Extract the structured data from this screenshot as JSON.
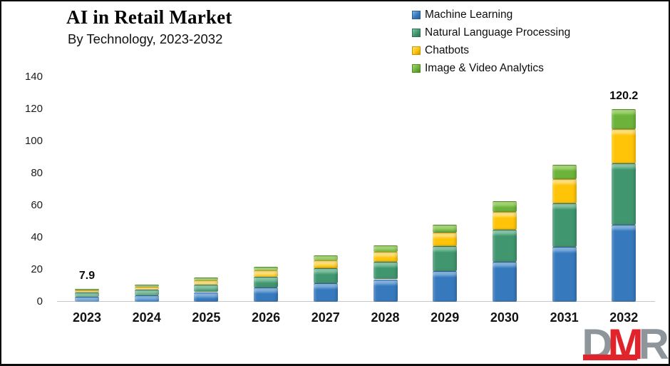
{
  "title": "AI in Retail Market",
  "subtitle": "By Technology, 2023-2032",
  "chart_data": {
    "type": "bar",
    "stacked": true,
    "title": "AI in Retail Market",
    "subtitle": "By Technology, 2023-2032",
    "xlabel": "",
    "ylabel": "",
    "ylim": [
      0,
      140
    ],
    "yticks": [
      0,
      20,
      40,
      60,
      80,
      100,
      120,
      140
    ],
    "grid": false,
    "legend_position": "top-right",
    "categories": [
      "2023",
      "2024",
      "2025",
      "2026",
      "2027",
      "2028",
      "2029",
      "2030",
      "2031",
      "2032"
    ],
    "series": [
      {
        "name": "Machine Learning",
        "color": "#3779BD",
        "light": "#7FB1DD",
        "dark": "#2B5F96",
        "values": [
          3.2,
          4.2,
          6.0,
          8.7,
          11.6,
          14.0,
          19.2,
          25.0,
          34.2,
          48.1
        ]
      },
      {
        "name": "Natural Language Processing",
        "color": "#40966F",
        "light": "#85C4A4",
        "dark": "#2F7354",
        "values": [
          2.5,
          3.4,
          4.8,
          6.9,
          9.2,
          11.1,
          15.3,
          19.9,
          27.2,
          38.2
        ]
      },
      {
        "name": "Chatbots",
        "color": "#FFC408",
        "light": "#FFE27C",
        "dark": "#C39800",
        "values": [
          1.4,
          1.9,
          2.6,
          3.8,
          5.1,
          6.1,
          8.4,
          10.9,
          14.9,
          21.2
        ]
      },
      {
        "name": "Image & Video Analytics",
        "color": "#6CB33C",
        "light": "#A5D573",
        "dark": "#4F8A28",
        "values": [
          0.8,
          1.1,
          1.6,
          2.4,
          3.1,
          3.8,
          5.1,
          6.7,
          9.2,
          12.7
        ]
      }
    ],
    "totals": [
      7.9,
      10.6,
      15.0,
      21.8,
      29.0,
      35.0,
      48.0,
      62.5,
      85.5,
      120.2
    ],
    "bar_total_labels": {
      "2023": "7.9",
      "2032": "120.2"
    }
  },
  "logo": {
    "letters": [
      {
        "char": "D",
        "color_role": "gray"
      },
      {
        "char": "M",
        "color_role": "red"
      },
      {
        "char": "R",
        "color_role": "gray"
      }
    ],
    "gray": "#8E959B",
    "red": "#E1232B"
  },
  "axis_line_color": "#C6C6C6"
}
